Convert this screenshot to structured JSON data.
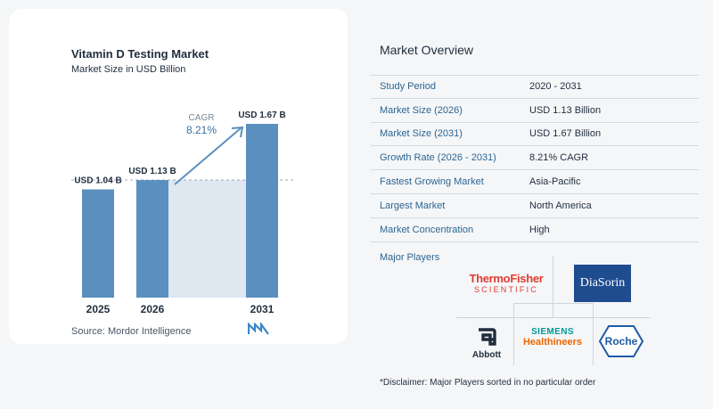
{
  "chart_data": {
    "type": "bar",
    "title": "Vitamin D Testing Market",
    "subtitle": "Market Size in USD Billion",
    "categories": [
      "2025",
      "2026",
      "2031"
    ],
    "values": [
      1.04,
      1.13,
      1.67
    ],
    "value_labels": [
      "USD 1.04 B",
      "USD 1.13 B",
      "USD 1.67 B"
    ],
    "cagr_label": "CAGR",
    "cagr_value": "8.21%",
    "ylim": [
      0,
      1.67
    ],
    "bar_color": "#5b8fbf",
    "shade_color": "#dfe7f1"
  },
  "source": "Source:  Mordor Intelligence",
  "overview": {
    "title": "Market Overview",
    "rows": [
      {
        "label": "Study Period",
        "value": "2020 - 2031"
      },
      {
        "label": "Market Size (2026)",
        "value": "USD 1.13 Billion"
      },
      {
        "label": "Market Size (2031)",
        "value": "USD 1.67 Billion"
      },
      {
        "label": "Growth Rate (2026 - 2031)",
        "value": "8.21% CAGR"
      },
      {
        "label": "Fastest Growing Market",
        "value": "Asia-Pacific"
      },
      {
        "label": "Largest Market",
        "value": "North America"
      },
      {
        "label": "Market Concentration",
        "value": "High"
      }
    ]
  },
  "players": {
    "label": "Major Players",
    "thermo_top": "ThermoFisher",
    "thermo_bottom": "SCIENTIFIC",
    "diasorin": "DiaSorin",
    "abbott": "Abbott",
    "siemens_top": "SIEMENS",
    "siemens_bottom": "Healthineers",
    "roche": "Roche"
  },
  "disclaimer": "*Disclaimer: Major Players sorted in no particular order"
}
